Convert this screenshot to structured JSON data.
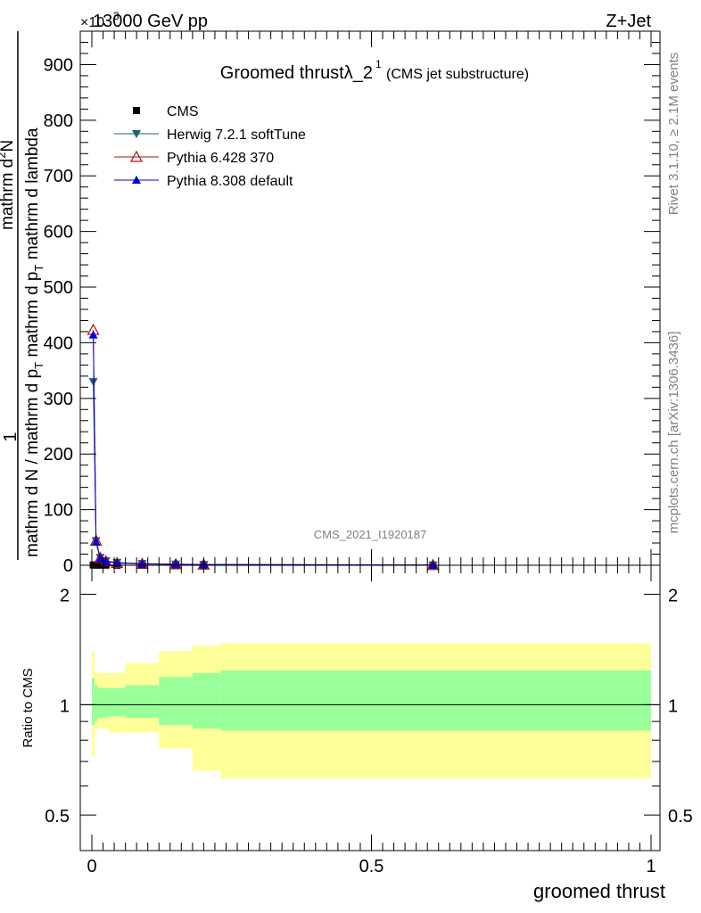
{
  "header": {
    "energy_label": "13000 GeV pp",
    "process_label": "Z+Jet",
    "exponent_label": "×10",
    "exponent_power": "3"
  },
  "side_labels": {
    "rivet": "Rivet 3.1.10, ≥ 2.1M events",
    "mcplots": "mcplots.cern.ch [arXiv:1306.3436]"
  },
  "chart_data": [
    {
      "type": "line",
      "title": "Groomed thrustλ_2",
      "title_superscript": "1",
      "subtitle": "(CMS jet substructure)",
      "watermark": "CMS_2021_I1920187",
      "ylabel_top": "1",
      "ylabel_line1": "mathrm d N / mathrm d p",
      "ylabel_line1_sub": "T",
      "ylabel_line1_end": " mathrm d p",
      "ylabel_line1_sub2": "T",
      "ylabel_line1_tail": " mathrm d lambda",
      "ylabel_frac_num": "mathrm d",
      "ylabel_frac_num_sup": "2",
      "ylabel_frac_num_end": "N",
      "xlabel": "groomed thrust",
      "xlim": [
        0,
        1
      ],
      "ylim": [
        0,
        960
      ],
      "y_unit_scale": 1000,
      "yticks": [
        0,
        100,
        200,
        300,
        400,
        500,
        600,
        700,
        800,
        900
      ],
      "xticks": [
        0,
        0.5,
        1
      ],
      "xtick_labels": [
        "0",
        "0.5",
        "1"
      ],
      "legend_position": "top-left",
      "series": [
        {
          "name": "CMS",
          "color": "#000000",
          "marker": "square",
          "x": [
            0.0025,
            0.0075,
            0.015,
            0.025,
            0.045,
            0.09,
            0.15,
            0.2,
            0.61
          ],
          "y": [
            0.5,
            0.4,
            0.3,
            0.3,
            0.2,
            0.1,
            0.1,
            0.05,
            0.02
          ]
        },
        {
          "name": "Herwig 7.2.1 softTune",
          "color": "#1f5f6f",
          "marker": "triangle-down",
          "x": [
            0.0025,
            0.0075,
            0.015,
            0.025,
            0.045,
            0.09,
            0.15,
            0.2,
            0.61
          ],
          "y": [
            330,
            44,
            14,
            8,
            5,
            3,
            2,
            1.5,
            0.5
          ]
        },
        {
          "name": "Pythia 6.428 370",
          "color": "#aa1111",
          "marker": "triangle-up-open",
          "x": [
            0.0025,
            0.0075,
            0.015,
            0.025,
            0.045,
            0.09,
            0.15,
            0.2,
            0.61
          ],
          "y": [
            423,
            44,
            13,
            7,
            4,
            2.5,
            1.8,
            1.2,
            0.4
          ]
        },
        {
          "name": "Pythia 8.308 default",
          "color": "#0000dd",
          "marker": "triangle-up",
          "x": [
            0.0025,
            0.0075,
            0.015,
            0.025,
            0.045,
            0.09,
            0.15,
            0.2,
            0.61
          ],
          "y": [
            414,
            42,
            12,
            7,
            4,
            2.5,
            1.8,
            1.2,
            0.4
          ]
        }
      ]
    },
    {
      "type": "area",
      "ylabel": "Ratio to CMS",
      "log_scale_y": true,
      "ylim": [
        0.4,
        2.4
      ],
      "yticks": [
        0.5,
        1,
        2
      ],
      "ytick_labels": [
        "0.5",
        "1",
        "2"
      ],
      "reference_line": 1,
      "bands": [
        {
          "name": "stat",
          "color": "#99ff99",
          "edges": [
            0,
            0.005,
            0.01,
            0.03,
            0.06,
            0.12,
            0.18,
            0.23,
            1.0
          ],
          "lo": [
            0.88,
            0.9,
            0.92,
            0.93,
            0.92,
            0.88,
            0.86,
            0.85
          ],
          "hi": [
            1.18,
            1.13,
            1.11,
            1.11,
            1.13,
            1.19,
            1.22,
            1.24
          ]
        },
        {
          "name": "total",
          "color": "#ffff99",
          "edges": [
            0,
            0.005,
            0.01,
            0.03,
            0.06,
            0.12,
            0.18,
            0.23,
            1.0
          ],
          "lo": [
            0.72,
            0.86,
            0.86,
            0.84,
            0.84,
            0.76,
            0.66,
            0.63
          ],
          "hi": [
            1.4,
            1.24,
            1.22,
            1.22,
            1.3,
            1.4,
            1.45,
            1.47
          ]
        }
      ]
    }
  ]
}
